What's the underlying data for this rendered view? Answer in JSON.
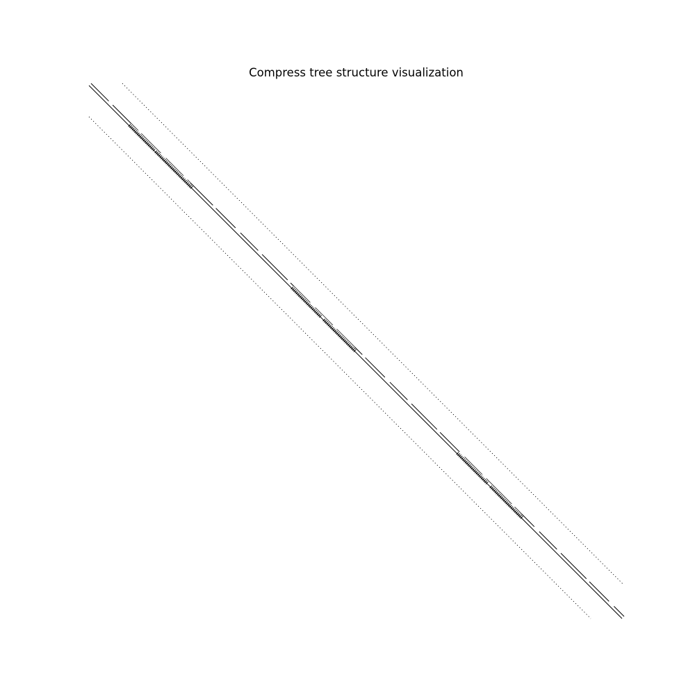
{
  "figure": {
    "title": "Compress tree structure visualization",
    "background": "#ffffff",
    "stroke_color": "#000000"
  },
  "structure": {
    "type": "sparsity-pattern",
    "axes_visible": false,
    "diagonal_bands": [
      {
        "name": "upper-dotted-band",
        "style": "dotted"
      },
      {
        "name": "main-diagonal-outer-line",
        "style": "solid"
      },
      {
        "name": "main-diagonal-inner-line",
        "style": "dashed"
      },
      {
        "name": "lower-dotted-band",
        "style": "dotted"
      }
    ],
    "dense_clusters": [
      {
        "name": "dense-cluster-1"
      },
      {
        "name": "dense-cluster-2"
      },
      {
        "name": "dense-cluster-3"
      }
    ]
  }
}
